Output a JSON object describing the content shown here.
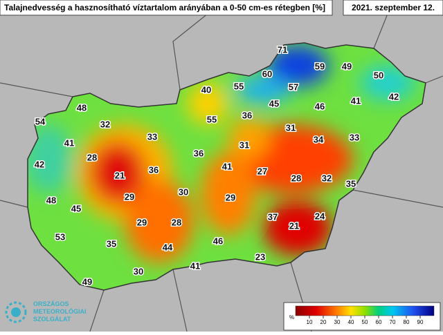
{
  "title": "Talajnedvesség a hasznosítható víztartalom arányában a 0-50 cm-es rétegben [%]",
  "date": "2021. szeptember 12.",
  "values": [
    71,
    59,
    49,
    50,
    60,
    57,
    42,
    41,
    46,
    40,
    55,
    45,
    48,
    36,
    55,
    54,
    32,
    31,
    33,
    34,
    33,
    41,
    31,
    28,
    36,
    42,
    21,
    36,
    41,
    27,
    28,
    32,
    35,
    30,
    29,
    29,
    48,
    45,
    37,
    24,
    21,
    29,
    28,
    53,
    35,
    46,
    44,
    23,
    41,
    30,
    49
  ],
  "colorbar": {
    "lim": [
      0,
      100
    ],
    "ticks": [
      10,
      20,
      30,
      40,
      50,
      60,
      70,
      80,
      90
    ],
    "unit": "%"
  },
  "logo": [
    "ORSZÁGOS",
    "METEOROLÓGIAI",
    "SZOLGÁLAT"
  ]
}
